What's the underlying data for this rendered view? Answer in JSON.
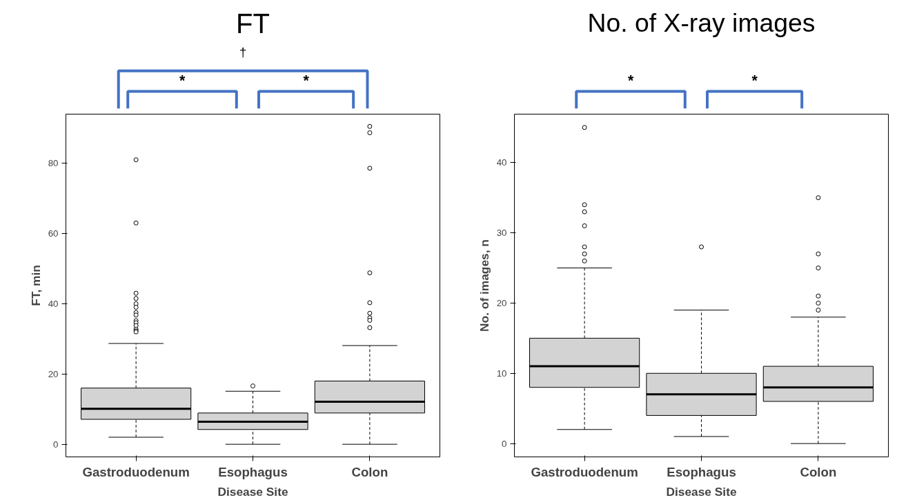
{
  "chart_data": [
    {
      "type": "box",
      "title": "FT",
      "ylabel": "FT, min",
      "xlabel": "Disease Site",
      "categories": [
        "Gastroduodenum",
        "Esophagus",
        "Colon"
      ],
      "ylim": [
        -3.6,
        94
      ],
      "yticks": [
        0,
        20,
        40,
        60,
        80
      ],
      "grid": false,
      "color": "#d3d3d3",
      "annotations": [
        "*",
        "*",
        "†"
      ],
      "boxes": [
        {
          "low": 2,
          "q1": 7.1,
          "median": 10.1,
          "q3": 16,
          "high": 28.7,
          "outliers": [
            81,
            63,
            43,
            41.5,
            40,
            39,
            37.5,
            36.8,
            35.2,
            34.6,
            33.8,
            32.8,
            32.3,
            32
          ]
        },
        {
          "low": 0,
          "q1": 4.2,
          "median": 6.4,
          "q3": 8.9,
          "high": 15.1,
          "outliers": [
            16.6
          ]
        },
        {
          "low": 0,
          "q1": 8.9,
          "median": 12.1,
          "q3": 18,
          "high": 28.1,
          "outliers": [
            90.5,
            88.7,
            78.6,
            48.8,
            40.3,
            37.3,
            36,
            35.3,
            33.2
          ]
        }
      ]
    },
    {
      "type": "box",
      "title": "No. of X-ray images",
      "ylabel": "No. of images, n",
      "xlabel": "Disease Site",
      "categories": [
        "Gastroduodenum",
        "Esophagus",
        "Colon"
      ],
      "ylim": [
        -1.9,
        46.9
      ],
      "yticks": [
        0,
        10,
        20,
        30,
        40
      ],
      "grid": false,
      "color": "#d3d3d3",
      "annotations": [
        "*",
        "*"
      ],
      "boxes": [
        {
          "low": 2,
          "q1": 8,
          "median": 11,
          "q3": 15,
          "high": 25,
          "outliers": [
            45,
            34,
            33,
            31,
            28,
            27,
            26
          ]
        },
        {
          "low": 1,
          "q1": 4,
          "median": 7,
          "q3": 10,
          "high": 19,
          "outliers": [
            28
          ]
        },
        {
          "low": 0,
          "q1": 6,
          "median": 8,
          "q3": 11,
          "high": 18,
          "outliers": [
            35,
            27,
            25,
            21,
            20,
            19
          ]
        }
      ]
    }
  ]
}
